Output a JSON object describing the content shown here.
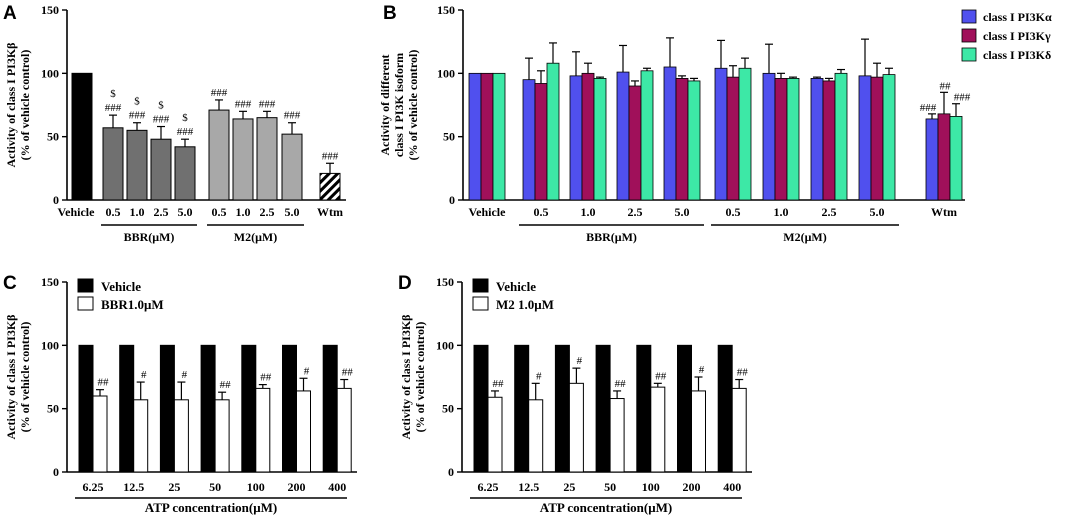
{
  "colors": {
    "alpha": "#5050ee",
    "gamma": "#a0105a",
    "delta": "#3de8a6",
    "vehicle": "#000000",
    "bbr": "#707070",
    "m2": "#a8a8a8"
  },
  "chart_data": [
    {
      "id": "A",
      "type": "bar",
      "panel_label": "A",
      "ylabel_line1": "Activity of class I PI3Kβ",
      "ylabel_line2": "(% of vehicle control)",
      "ylim": [
        0,
        150
      ],
      "yticks": [
        "0",
        "50",
        "100",
        "150"
      ],
      "categories": [
        "Vehicle",
        "0.5",
        "1.0",
        "2.5",
        "5.0",
        "0.5",
        "1.0",
        "2.5",
        "5.0",
        "Wtm"
      ],
      "values": [
        100,
        57,
        55,
        48,
        42,
        71,
        64,
        65,
        52,
        21
      ],
      "errors": [
        0,
        10,
        6,
        10,
        6,
        8,
        6,
        5,
        9,
        8
      ],
      "annotations": [
        "",
        "$\n###",
        "$\n###",
        "$\n###",
        "$\n###",
        "###",
        "###",
        "###",
        "###",
        "###"
      ],
      "group_labels": [
        {
          "label": "BBR(μM)",
          "from": 1,
          "to": 4
        },
        {
          "label": "M2(μM)",
          "from": 5,
          "to": 8
        }
      ]
    },
    {
      "id": "B",
      "type": "bar",
      "panel_label": "B",
      "ylabel_line1": "Activity of different",
      "ylabel_line2": "class I PI3K isoform",
      "ylabel_line3": "(% of vehicle control)",
      "ylim": [
        0,
        150
      ],
      "yticks": [
        "0",
        "50",
        "100",
        "150"
      ],
      "categories": [
        "Vehicle",
        "0.5",
        "1.0",
        "2.5",
        "5.0",
        "0.5",
        "1.0",
        "2.5",
        "5.0",
        "Wtm"
      ],
      "series": [
        {
          "name": "class I PI3Kα",
          "values": [
            100,
            95,
            98,
            101,
            105,
            104,
            100,
            96,
            98,
            64
          ],
          "errors": [
            0,
            17,
            19,
            21,
            23,
            22,
            23,
            1,
            29,
            4
          ],
          "annotations": [
            "",
            "",
            "",
            "",
            "",
            "",
            "",
            "",
            "",
            "###"
          ]
        },
        {
          "name": "class I PI3Kγ",
          "values": [
            100,
            92,
            100,
            90,
            96,
            97,
            96,
            94,
            97,
            68
          ],
          "errors": [
            0,
            10,
            8,
            4,
            2,
            9,
            4,
            2,
            11,
            17
          ],
          "annotations": [
            "",
            "",
            "",
            "",
            "",
            "",
            "",
            "",
            "",
            "##"
          ]
        },
        {
          "name": "class I PI3Kδ",
          "values": [
            100,
            108,
            96,
            102,
            94,
            104,
            96,
            100,
            99,
            66
          ],
          "errors": [
            0,
            16,
            1,
            2,
            2,
            8,
            1,
            3,
            5,
            10
          ],
          "annotations": [
            "",
            "",
            "",
            "",
            "",
            "",
            "",
            "",
            "",
            "###"
          ]
        }
      ],
      "group_labels": [
        {
          "label": "BBR(μM)",
          "from": 1,
          "to": 4
        },
        {
          "label": "M2(μM)",
          "from": 5,
          "to": 8
        }
      ]
    },
    {
      "id": "C",
      "type": "bar",
      "panel_label": "C",
      "ylabel_line1": "Activity of class I PI3Kβ",
      "ylabel_line2": "(% of vehicle control)",
      "xlabel": "ATP concentration(μM)",
      "ylim": [
        0,
        150
      ],
      "yticks": [
        "0",
        "50",
        "100",
        "150"
      ],
      "categories": [
        "6.25",
        "12.5",
        "25",
        "50",
        "100",
        "200",
        "400"
      ],
      "series": [
        {
          "name": "Vehicle",
          "values": [
            100,
            100,
            100,
            100,
            100,
            100,
            100
          ],
          "errors": [
            0,
            0,
            0,
            0,
            0,
            0,
            0
          ],
          "annotations": [
            "",
            "",
            "",
            "",
            "",
            "",
            ""
          ]
        },
        {
          "name": "BBR1.0μM",
          "values": [
            60,
            57,
            57,
            57,
            66,
            64,
            66
          ],
          "errors": [
            5,
            14,
            14,
            6,
            3,
            10,
            7
          ],
          "annotations": [
            "##",
            "#",
            "#",
            "##",
            "##",
            "#",
            "##"
          ]
        }
      ]
    },
    {
      "id": "D",
      "type": "bar",
      "panel_label": "D",
      "ylabel_line1": "Activity of class I PI3Kβ",
      "ylabel_line2": "(% of vehicle control)",
      "xlabel": "ATP concentration(μM)",
      "ylim": [
        0,
        150
      ],
      "yticks": [
        "0",
        "50",
        "100",
        "150"
      ],
      "categories": [
        "6.25",
        "12.5",
        "25",
        "50",
        "100",
        "200",
        "400"
      ],
      "series": [
        {
          "name": "Vehicle",
          "values": [
            100,
            100,
            100,
            100,
            100,
            100,
            100
          ],
          "errors": [
            0,
            0,
            0,
            0,
            0,
            0,
            0
          ],
          "annotations": [
            "",
            "",
            "",
            "",
            "",
            "",
            ""
          ]
        },
        {
          "name": "M2 1.0μM",
          "values": [
            59,
            57,
            70,
            58,
            67,
            64,
            66
          ],
          "errors": [
            5,
            13,
            12,
            6,
            3,
            11,
            7
          ],
          "annotations": [
            "##",
            "#",
            "#",
            "##",
            "##",
            "#",
            "##"
          ]
        }
      ]
    }
  ]
}
